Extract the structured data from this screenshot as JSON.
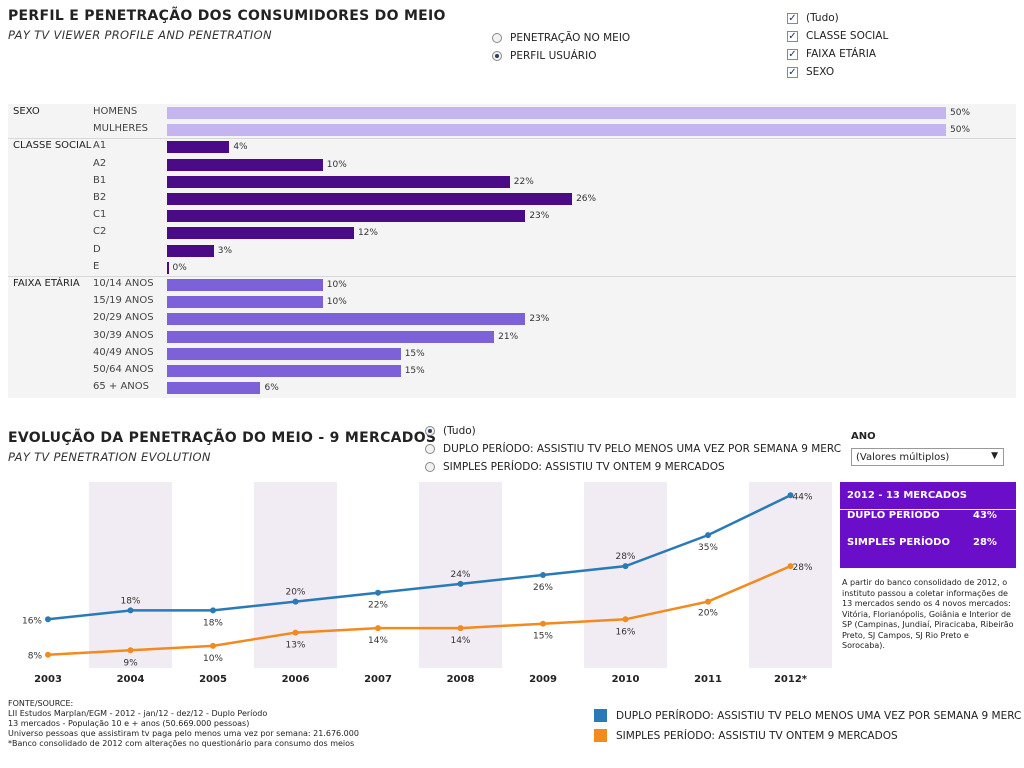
{
  "top": {
    "title": "PERFIL E PENETRAÇÃO DOS CONSUMIDORES DO MEIO",
    "subtitle": "PAY TV VIEWER PROFILE AND PENETRATION",
    "radios": [
      {
        "label": "PENETRAÇÃO NO MEIO",
        "selected": false
      },
      {
        "label": "PERFIL USUÁRIO",
        "selected": true
      }
    ],
    "checkboxes": [
      {
        "label": "(Tudo)",
        "checked": true
      },
      {
        "label": "CLASSE SOCIAL",
        "checked": true
      },
      {
        "label": "FAIXA ETÁRIA",
        "checked": true
      },
      {
        "label": "SEXO",
        "checked": true
      }
    ]
  },
  "bottom": {
    "title": "EVOLUÇÃO DA PENETRAÇÃO DO MEIO - 9 MERCADOS",
    "subtitle": "PAY TV PENETRATION EVOLUTION",
    "radios": [
      {
        "label": "(Tudo)",
        "selected": true
      },
      {
        "label": "DUPLO PERÍODO: ASSISTIU TV PELO MENOS UMA VEZ POR SEMANA 9 MERC",
        "selected": false
      },
      {
        "label": "SIMPLES PERÍODO: ASSISTIU TV ONTEM 9 MERCADOS",
        "selected": false
      }
    ],
    "year_filter": {
      "label": "ANO",
      "value": "(Valores múltiplos)"
    },
    "stat_box": {
      "title": "2012 - 13 MERCADOS",
      "rows": [
        {
          "label": "DUPLO PERÍODO",
          "value": "43%"
        },
        {
          "label": "SIMPLES PERÍODO",
          "value": "28%"
        }
      ]
    },
    "note": "A partir do banco consolidado de 2012, o instituto passou a coletar informações de 13 mercados sendo os 4 novos mercados: Vitória, Florianópolis, Goiânia e Interior de SP (Campinas, Jundiaí, Piracicaba, Ribeirão Preto, SJ Campos, SJ Rio Preto e Sorocaba).",
    "footer": [
      "FONTE/SOURCE:",
      "LII Estudos Marplan/EGM - 2012 - jan/12 - dez/12 - Duplo Período",
      "13 mercados - População 10 e + anos (50.669.000 pessoas)",
      "Universo pessoas que assistiram tv paga pelo menos uma vez por semana: 21.676.000",
      "*Banco consolidado de 2012 com alterações no questionário para consumo dos meios"
    ]
  },
  "chart_data": [
    {
      "type": "bar",
      "orientation": "horizontal",
      "groups": [
        {
          "name": "SEXO",
          "color": "#c4b5f0",
          "categories": [
            "HOMENS",
            "MULHERES"
          ],
          "values": [
            50,
            50
          ],
          "labels": [
            "50%",
            "50%"
          ]
        },
        {
          "name": "CLASSE SOCIAL",
          "color": "#4b0a86",
          "categories": [
            "A1",
            "A2",
            "B1",
            "B2",
            "C1",
            "C2",
            "D",
            "E"
          ],
          "values": [
            4,
            10,
            22,
            26,
            23,
            12,
            3,
            0
          ],
          "labels": [
            "4%",
            "10%",
            "22%",
            "26%",
            "23%",
            "12%",
            "3%",
            "0%"
          ]
        },
        {
          "name": "FAIXA ETÁRIA",
          "color": "#7c61d8",
          "categories": [
            "10/14 ANOS",
            "15/19 ANOS",
            "20/29 ANOS",
            "30/39 ANOS",
            "40/49 ANOS",
            "50/64 ANOS",
            "65 + ANOS"
          ],
          "values": [
            10,
            10,
            23,
            21,
            15,
            15,
            6
          ],
          "labels": [
            "10%",
            "10%",
            "23%",
            "21%",
            "15%",
            "15%",
            "6%"
          ]
        }
      ],
      "xlim": [
        0,
        50
      ]
    },
    {
      "type": "line",
      "categories": [
        "2003",
        "2004",
        "2005",
        "2006",
        "2007",
        "2008",
        "2009",
        "2010",
        "2011",
        "2012*"
      ],
      "series": [
        {
          "name": "DUPLO PERÍRODO: ASSISTIU TV PELO MENOS UMA VEZ POR SEMANA 9 MERC",
          "color": "#2a7ab8",
          "values": [
            16,
            18,
            18,
            20,
            22,
            24,
            26,
            28,
            35,
            44
          ],
          "labels": [
            "16%",
            "18%",
            "18%",
            "20%",
            "22%",
            "24%",
            "26%",
            "28%",
            "35%",
            "44%"
          ]
        },
        {
          "name": "SIMPLES PERÍODO: ASSISTIU TV ONTEM 9 MERCADOS",
          "color": "#f28a1e",
          "values": [
            8,
            9,
            10,
            13,
            14,
            14,
            15,
            16,
            20,
            28
          ],
          "labels": [
            "8%",
            "9%",
            "10%",
            "13%",
            "14%",
            "14%",
            "15%",
            "16%",
            "20%",
            "28%"
          ]
        }
      ],
      "ylim": [
        5,
        47
      ],
      "shaded_bands": [
        "2004",
        "2006",
        "2008",
        "2010",
        "2012*"
      ]
    }
  ]
}
